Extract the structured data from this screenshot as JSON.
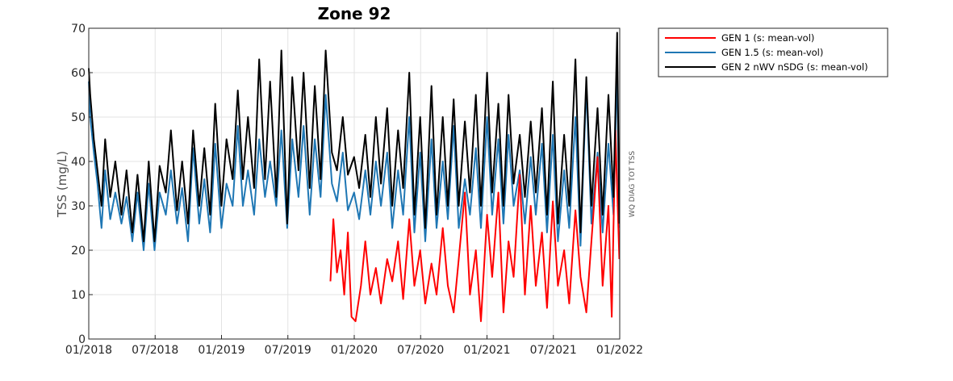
{
  "chart_data": {
    "type": "line",
    "title": "Zone 92",
    "xlabel": "",
    "ylabel": "TSS (mg/L)",
    "side_label": "WQ DIAG TOT TSS",
    "ylim": [
      0,
      70
    ],
    "yticks": [
      0,
      10,
      20,
      30,
      40,
      50,
      60,
      70
    ],
    "xlim": [
      "2018-01-01",
      "2022-01-01"
    ],
    "xtick_labels": [
      "01/2018",
      "07/2018",
      "01/2019",
      "07/2019",
      "01/2020",
      "07/2020",
      "01/2021",
      "07/2021",
      "01/2022"
    ],
    "grid": true,
    "legend_position": "outside-right",
    "series": [
      {
        "name": "GEN 1 (s: mean-vol)",
        "color": "#ff0000",
        "x": [
          "2019-10-28",
          "2019-11-05",
          "2019-11-15",
          "2019-11-25",
          "2019-12-05",
          "2019-12-15",
          "2019-12-25",
          "2020-01-05",
          "2020-01-20",
          "2020-02-01",
          "2020-02-15",
          "2020-03-01",
          "2020-03-15",
          "2020-04-01",
          "2020-04-15",
          "2020-05-01",
          "2020-05-15",
          "2020-06-01",
          "2020-06-15",
          "2020-07-01",
          "2020-07-15",
          "2020-08-01",
          "2020-08-15",
          "2020-09-01",
          "2020-09-15",
          "2020-10-01",
          "2020-10-15",
          "2020-11-01",
          "2020-11-15",
          "2020-12-01",
          "2020-12-15",
          "2021-01-01",
          "2021-01-15",
          "2021-02-01",
          "2021-02-15",
          "2021-03-01",
          "2021-03-15",
          "2021-04-01",
          "2021-04-15",
          "2021-05-01",
          "2021-05-15",
          "2021-06-01",
          "2021-06-15",
          "2021-07-01",
          "2021-07-15",
          "2021-08-01",
          "2021-08-15",
          "2021-09-01",
          "2021-09-15",
          "2021-10-01",
          "2021-10-15",
          "2021-11-01",
          "2021-11-15",
          "2021-12-01",
          "2021-12-10",
          "2021-12-20",
          "2021-12-31"
        ],
        "y": [
          13,
          27,
          15,
          20,
          10,
          24,
          5,
          4,
          12,
          22,
          10,
          16,
          8,
          18,
          13,
          22,
          9,
          27,
          12,
          20,
          8,
          17,
          10,
          25,
          12,
          6,
          18,
          33,
          10,
          20,
          4,
          28,
          14,
          33,
          6,
          22,
          14,
          37,
          10,
          30,
          12,
          24,
          7,
          31,
          12,
          20,
          8,
          29,
          14,
          6,
          22,
          41,
          12,
          30,
          5,
          47,
          18
        ]
      },
      {
        "name": "GEN 1.5 (s: mean-vol)",
        "color": "#1f77b4",
        "x": [
          "2018-01-01",
          "2018-01-05",
          "2018-01-15",
          "2018-01-25",
          "2018-02-05",
          "2018-02-15",
          "2018-03-01",
          "2018-03-15",
          "2018-04-01",
          "2018-04-15",
          "2018-05-01",
          "2018-05-15",
          "2018-06-01",
          "2018-06-15",
          "2018-07-01",
          "2018-07-15",
          "2018-08-01",
          "2018-08-15",
          "2018-09-01",
          "2018-09-15",
          "2018-10-01",
          "2018-10-15",
          "2018-11-01",
          "2018-11-15",
          "2018-12-01",
          "2018-12-15",
          "2019-01-01",
          "2019-01-15",
          "2019-02-01",
          "2019-02-15",
          "2019-03-01",
          "2019-03-15",
          "2019-04-01",
          "2019-04-15",
          "2019-05-01",
          "2019-05-15",
          "2019-06-01",
          "2019-06-15",
          "2019-07-01",
          "2019-07-15",
          "2019-08-01",
          "2019-08-15",
          "2019-09-01",
          "2019-09-15",
          "2019-10-01",
          "2019-10-15",
          "2019-11-01",
          "2019-11-15",
          "2019-12-01",
          "2019-12-15",
          "2020-01-01",
          "2020-01-15",
          "2020-02-01",
          "2020-02-15",
          "2020-03-01",
          "2020-03-15",
          "2020-04-01",
          "2020-04-15",
          "2020-05-01",
          "2020-05-15",
          "2020-06-01",
          "2020-06-15",
          "2020-07-01",
          "2020-07-15",
          "2020-08-01",
          "2020-08-15",
          "2020-09-01",
          "2020-09-15",
          "2020-10-01",
          "2020-10-15",
          "2020-11-01",
          "2020-11-15",
          "2020-12-01",
          "2020-12-15",
          "2021-01-01",
          "2021-01-15",
          "2021-02-01",
          "2021-02-15",
          "2021-03-01",
          "2021-03-15",
          "2021-04-01",
          "2021-04-15",
          "2021-05-01",
          "2021-05-15",
          "2021-06-01",
          "2021-06-15",
          "2021-07-01",
          "2021-07-15",
          "2021-08-01",
          "2021-08-15",
          "2021-09-01",
          "2021-09-15",
          "2021-10-01",
          "2021-10-15",
          "2021-11-01",
          "2021-11-15",
          "2021-12-01",
          "2021-12-15",
          "2021-12-25",
          "2021-12-31"
        ],
        "y": [
          58,
          50,
          42,
          35,
          25,
          38,
          27,
          33,
          26,
          32,
          22,
          33,
          20,
          35,
          20,
          33,
          28,
          38,
          26,
          34,
          22,
          43,
          26,
          36,
          24,
          44,
          25,
          35,
          30,
          48,
          30,
          38,
          28,
          45,
          32,
          40,
          30,
          47,
          25,
          45,
          32,
          48,
          28,
          45,
          32,
          55,
          35,
          31,
          42,
          29,
          33,
          27,
          38,
          28,
          40,
          30,
          42,
          25,
          38,
          28,
          50,
          24,
          42,
          22,
          45,
          25,
          40,
          27,
          48,
          25,
          36,
          28,
          43,
          25,
          50,
          28,
          45,
          26,
          46,
          30,
          38,
          26,
          41,
          28,
          44,
          24,
          46,
          22,
          38,
          25,
          50,
          21,
          57,
          26,
          42,
          24,
          44,
          28,
          62,
          25
        ]
      },
      {
        "name": "GEN 2 nWV nSDG (s: mean-vol)",
        "color": "#000000",
        "x": [
          "2018-01-01",
          "2018-01-05",
          "2018-01-15",
          "2018-01-25",
          "2018-02-05",
          "2018-02-15",
          "2018-03-01",
          "2018-03-15",
          "2018-04-01",
          "2018-04-15",
          "2018-05-01",
          "2018-05-15",
          "2018-06-01",
          "2018-06-15",
          "2018-07-01",
          "2018-07-15",
          "2018-08-01",
          "2018-08-15",
          "2018-09-01",
          "2018-09-15",
          "2018-10-01",
          "2018-10-15",
          "2018-11-01",
          "2018-11-15",
          "2018-12-01",
          "2018-12-15",
          "2019-01-01",
          "2019-01-15",
          "2019-02-01",
          "2019-02-15",
          "2019-03-01",
          "2019-03-15",
          "2019-04-01",
          "2019-04-15",
          "2019-05-01",
          "2019-05-15",
          "2019-06-01",
          "2019-06-15",
          "2019-07-01",
          "2019-07-15",
          "2019-08-01",
          "2019-08-15",
          "2019-09-01",
          "2019-09-15",
          "2019-10-01",
          "2019-10-15",
          "2019-11-01",
          "2019-11-15",
          "2019-12-01",
          "2019-12-15",
          "2020-01-01",
          "2020-01-15",
          "2020-02-01",
          "2020-02-15",
          "2020-03-01",
          "2020-03-15",
          "2020-04-01",
          "2020-04-15",
          "2020-05-01",
          "2020-05-15",
          "2020-06-01",
          "2020-06-15",
          "2020-07-01",
          "2020-07-15",
          "2020-08-01",
          "2020-08-15",
          "2020-09-01",
          "2020-09-15",
          "2020-10-01",
          "2020-10-15",
          "2020-11-01",
          "2020-11-15",
          "2020-12-01",
          "2020-12-15",
          "2021-01-01",
          "2021-01-15",
          "2021-02-01",
          "2021-02-15",
          "2021-03-01",
          "2021-03-15",
          "2021-04-01",
          "2021-04-15",
          "2021-05-01",
          "2021-05-15",
          "2021-06-01",
          "2021-06-15",
          "2021-07-01",
          "2021-07-15",
          "2021-08-01",
          "2021-08-15",
          "2021-09-01",
          "2021-09-15",
          "2021-10-01",
          "2021-10-15",
          "2021-11-01",
          "2021-11-15",
          "2021-12-01",
          "2021-12-15",
          "2021-12-25",
          "2021-12-31"
        ],
        "y": [
          61,
          55,
          45,
          38,
          30,
          45,
          32,
          40,
          28,
          38,
          24,
          37,
          22,
          40,
          22,
          39,
          33,
          47,
          29,
          40,
          26,
          47,
          30,
          43,
          28,
          53,
          30,
          45,
          36,
          56,
          36,
          50,
          34,
          63,
          36,
          58,
          32,
          65,
          26,
          59,
          38,
          60,
          34,
          57,
          36,
          65,
          42,
          38,
          50,
          37,
          41,
          34,
          46,
          32,
          50,
          35,
          52,
          30,
          47,
          34,
          60,
          28,
          50,
          25,
          57,
          28,
          50,
          30,
          54,
          30,
          49,
          33,
          55,
          30,
          60,
          33,
          53,
          30,
          55,
          35,
          46,
          32,
          49,
          33,
          52,
          28,
          58,
          26,
          46,
          30,
          63,
          24,
          59,
          30,
          52,
          28,
          55,
          32,
          69,
          26
        ]
      }
    ]
  }
}
